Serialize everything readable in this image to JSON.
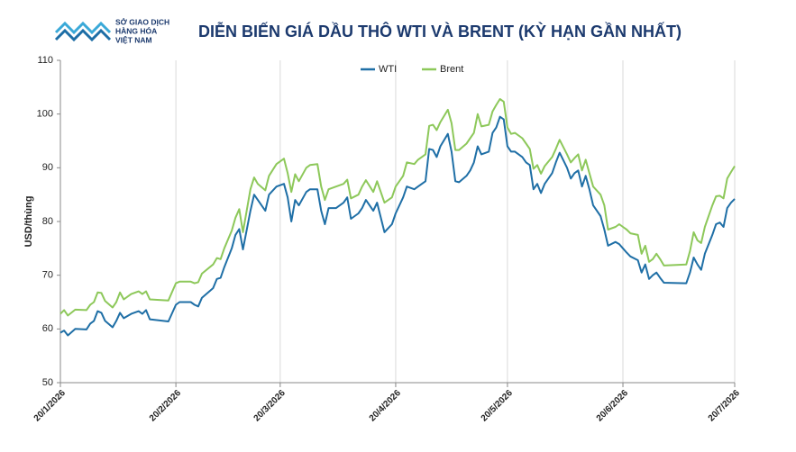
{
  "logo": {
    "lines": [
      "SỞ GIAO DỊCH",
      "HÀNG HÓA",
      "VIỆT NAM"
    ]
  },
  "chart_data": {
    "type": "line",
    "title": "DIỄN BIẾN GIÁ DẦU THÔ WTI VÀ BRENT (KỲ HẠN GẦN NHẤT)",
    "y_label": "USD/thùng",
    "legend": "top",
    "grid": true,
    "x": [
      "2026-01-20",
      "2026-01-21",
      "2026-01-22",
      "2026-01-24",
      "2026-01-27",
      "2026-01-28",
      "2026-01-29",
      "2026-01-30",
      "2026-01-31",
      "2026-02-01",
      "2026-02-03",
      "2026-02-04",
      "2026-02-05",
      "2026-02-06",
      "2026-02-08",
      "2026-02-10",
      "2026-02-11",
      "2026-02-12",
      "2026-02-13",
      "2026-02-18",
      "2026-02-20",
      "2026-02-21",
      "2026-02-24",
      "2026-02-25",
      "2026-02-26",
      "2026-02-27",
      "2026-03-02",
      "2026-03-03",
      "2026-03-04",
      "2026-03-05",
      "2026-03-07",
      "2026-03-08",
      "2026-03-09",
      "2026-03-10",
      "2026-03-12",
      "2026-03-13",
      "2026-03-14",
      "2026-03-16",
      "2026-03-17",
      "2026-03-19",
      "2026-03-21",
      "2026-03-22",
      "2026-03-23",
      "2026-03-24",
      "2026-03-25",
      "2026-03-27",
      "2026-03-28",
      "2026-03-30",
      "2026-03-31",
      "2026-04-01",
      "2026-04-02",
      "2026-04-04",
      "2026-04-06",
      "2026-04-07",
      "2026-04-08",
      "2026-04-10",
      "2026-04-11",
      "2026-04-12",
      "2026-04-14",
      "2026-04-15",
      "2026-04-17",
      "2026-04-19",
      "2026-04-20",
      "2026-04-22",
      "2026-04-23",
      "2026-04-25",
      "2026-04-26",
      "2026-04-28",
      "2026-04-29",
      "2026-04-30",
      "2026-05-01",
      "2026-05-02",
      "2026-05-04",
      "2026-05-05",
      "2026-05-06",
      "2026-05-07",
      "2026-05-09",
      "2026-05-10",
      "2026-05-11",
      "2026-05-12",
      "2026-05-13",
      "2026-05-15",
      "2026-05-16",
      "2026-05-17",
      "2026-05-18",
      "2026-05-19",
      "2026-05-20",
      "2026-05-21",
      "2026-05-22",
      "2026-05-24",
      "2026-05-25",
      "2026-05-26",
      "2026-05-27",
      "2026-05-28",
      "2026-05-29",
      "2026-05-30",
      "2026-06-01",
      "2026-06-02",
      "2026-06-03",
      "2026-06-05",
      "2026-06-06",
      "2026-06-07",
      "2026-06-08",
      "2026-06-09",
      "2026-06-10",
      "2026-06-11",
      "2026-06-12",
      "2026-06-14",
      "2026-06-15",
      "2026-06-16",
      "2026-06-18",
      "2026-06-19",
      "2026-06-20",
      "2026-06-21",
      "2026-06-22",
      "2026-06-24",
      "2026-06-25",
      "2026-06-26",
      "2026-06-27",
      "2026-06-28",
      "2026-06-29",
      "2026-06-30",
      "2026-07-01",
      "2026-07-07",
      "2026-07-08",
      "2026-07-09",
      "2026-07-10",
      "2026-07-11",
      "2026-07-12",
      "2026-07-14",
      "2026-07-15",
      "2026-07-16",
      "2026-07-17",
      "2026-07-18",
      "2026-07-19",
      "2026-07-20"
    ],
    "series": [
      {
        "name": "WTI",
        "color": "#1f6fa6",
        "values": [
          59.3,
          59.7,
          58.8,
          60,
          59.9,
          61,
          61.5,
          63.3,
          63,
          61.5,
          60.3,
          61.5,
          63,
          62,
          62.8,
          63.3,
          62.8,
          63.5,
          61.8,
          61.4,
          64.5,
          65,
          65,
          64.5,
          64.2,
          65.8,
          67.6,
          69.3,
          69.5,
          71.5,
          75,
          77.5,
          78.6,
          74.8,
          82,
          85,
          84,
          82,
          85,
          86.5,
          87,
          84.5,
          80,
          84,
          83,
          85.5,
          86,
          86,
          82,
          79.5,
          82.5,
          82.5,
          83.5,
          84.5,
          80.5,
          81.5,
          82.5,
          84,
          82,
          83.5,
          78,
          79.5,
          81.5,
          84.5,
          86.5,
          86,
          86.5,
          87.5,
          93.5,
          93.3,
          92,
          94,
          96.3,
          93,
          87.5,
          87.3,
          88.5,
          89.5,
          91,
          94,
          92.5,
          93,
          96.5,
          97.5,
          99.5,
          99,
          94,
          93,
          93,
          92,
          91,
          90.5,
          86,
          87,
          85.3,
          87,
          89,
          91,
          92.8,
          90,
          88,
          89,
          89.5,
          86.5,
          88.5,
          86,
          83,
          81,
          78.5,
          75.5,
          76.2,
          75.8,
          75,
          74.2,
          73.5,
          72.8,
          70.5,
          72,
          69.3,
          70,
          70.5,
          69.5,
          68.6,
          68.5,
          70.5,
          73.3,
          72,
          71,
          74,
          77.5,
          79.5,
          79.8,
          79,
          82.5,
          83.5,
          84.2
        ]
      },
      {
        "name": "Brent",
        "color": "#8dc85a",
        "values": [
          62.8,
          63.5,
          62.5,
          63.6,
          63.5,
          64.5,
          65,
          66.8,
          66.7,
          65.2,
          64,
          65,
          66.8,
          65.5,
          66.5,
          67,
          66.5,
          67,
          65.5,
          65.3,
          68.5,
          68.8,
          68.8,
          68.5,
          68.7,
          70.3,
          72,
          73.2,
          73,
          75,
          78.3,
          80.7,
          82.3,
          78,
          86,
          88.2,
          87,
          85.8,
          88.5,
          90.7,
          91.7,
          89,
          85.5,
          88.8,
          87.5,
          90,
          90.5,
          90.7,
          86.5,
          84,
          86,
          86.5,
          87,
          87.8,
          84.3,
          85,
          86.5,
          87.7,
          85.5,
          87.5,
          83.5,
          84.5,
          86.5,
          88.5,
          91,
          90.7,
          91.5,
          92.5,
          97.8,
          98,
          97,
          98.5,
          100.8,
          98.3,
          93.3,
          93.3,
          94.5,
          95.5,
          96.5,
          100,
          97.7,
          98,
          100.5,
          101.7,
          102.8,
          102.3,
          97.5,
          96.3,
          96.5,
          95.5,
          94.5,
          93.5,
          89.8,
          90.5,
          88.9,
          90.3,
          92,
          93.5,
          95.2,
          92.5,
          91,
          91.8,
          92.5,
          89.5,
          91.5,
          89,
          86.5,
          85,
          83,
          78.5,
          79,
          79.5,
          79,
          78.5,
          77.8,
          77.5,
          74,
          75.5,
          72.5,
          73,
          74,
          73,
          71.8,
          72,
          74.5,
          78,
          76.5,
          76,
          79,
          83,
          84.7,
          84.8,
          84.3,
          88,
          89.2,
          90.3
        ]
      }
    ],
    "xlim": [
      "2026-01-20",
      "2026-07-20"
    ],
    "xticks": [
      {
        "value": "2026-01-20",
        "label": "20/1/2026"
      },
      {
        "value": "2026-02-20",
        "label": "20/2/2026"
      },
      {
        "value": "2026-03-20",
        "label": "20/3/2026"
      },
      {
        "value": "2026-04-20",
        "label": "20/4/2026"
      },
      {
        "value": "2026-05-20",
        "label": "20/5/2026"
      },
      {
        "value": "2026-06-20",
        "label": "20/6/2026"
      },
      {
        "value": "2026-07-20",
        "label": "20/7/2026"
      }
    ],
    "ylim": [
      50,
      110
    ],
    "yticks": [
      50,
      60,
      70,
      80,
      90,
      100,
      110
    ]
  }
}
